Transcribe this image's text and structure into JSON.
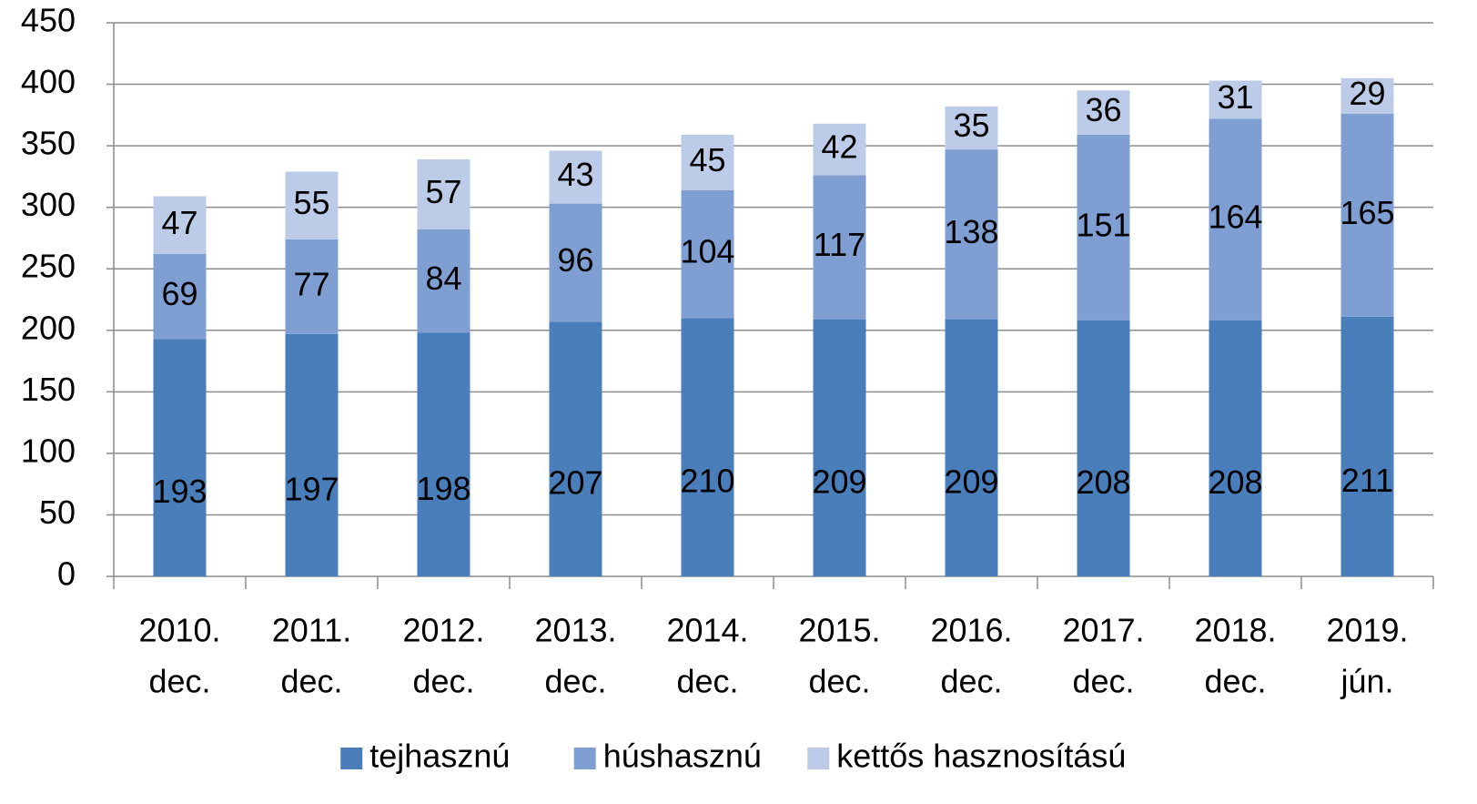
{
  "chart_data": {
    "type": "stacked_bar",
    "categories": [
      [
        "2010.",
        "dec."
      ],
      [
        "2011.",
        "dec."
      ],
      [
        "2012.",
        "dec."
      ],
      [
        "2013.",
        "dec."
      ],
      [
        "2014.",
        "dec."
      ],
      [
        "2015.",
        "dec."
      ],
      [
        "2016.",
        "dec."
      ],
      [
        "2017.",
        "dec."
      ],
      [
        "2018.",
        "dec."
      ],
      [
        "2019.",
        "jún."
      ]
    ],
    "series": [
      {
        "name": "tejhasznú",
        "color": "#4a7ebb",
        "values": [
          193,
          197,
          198,
          207,
          210,
          209,
          209,
          208,
          208,
          211
        ]
      },
      {
        "name": "húshasznú",
        "color": "#7f9fd3",
        "values": [
          69,
          77,
          84,
          96,
          104,
          117,
          138,
          151,
          164,
          165
        ]
      },
      {
        "name": "kettős hasznosítású",
        "color": "#bccbe7",
        "values": [
          47,
          55,
          57,
          43,
          45,
          42,
          35,
          36,
          31,
          29
        ]
      }
    ],
    "ylim": [
      0,
      450
    ],
    "yticks": [
      0,
      50,
      100,
      150,
      200,
      250,
      300,
      350,
      400,
      450
    ],
    "grid": true,
    "legend": "bottom"
  }
}
